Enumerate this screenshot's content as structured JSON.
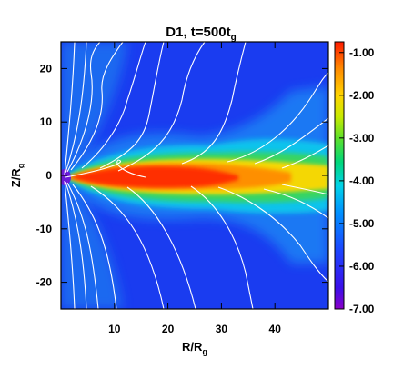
{
  "chart_data": {
    "type": "heatmap",
    "title_main": "D1, t=500t",
    "title_sub": "g",
    "xlabel_main": "R/R",
    "xlabel_sub": "g",
    "ylabel_main": "Z/R",
    "ylabel_sub": "g",
    "xlim": [
      0,
      50
    ],
    "ylim": [
      -25,
      25
    ],
    "x_ticks": [
      10,
      20,
      30,
      40
    ],
    "y_ticks": [
      20,
      10,
      0,
      -10,
      -20
    ],
    "x_tick_labels": [
      "10",
      "20",
      "30",
      "40"
    ],
    "y_tick_labels": [
      "20",
      "10",
      "0",
      "-10",
      "-20"
    ],
    "colorbar": {
      "min": -7.0,
      "max": -0.75,
      "ticks": [
        -1.0,
        -2.0,
        -3.0,
        -4.0,
        -5.0,
        -6.0,
        -7.0
      ],
      "tick_labels": [
        "-1.00",
        "-2.00",
        "-3.00",
        "-4.00",
        "-5.00",
        "-6.00",
        "-7.00"
      ],
      "colormap": [
        "#8a00c8",
        "#2f1cf0",
        "#0078ff",
        "#00c8e6",
        "#00d060",
        "#c8e600",
        "#ffd000",
        "#ff8c00",
        "#ff2400"
      ]
    },
    "field_line_color": "#ffffff",
    "background_color": "#1a3cf0"
  }
}
